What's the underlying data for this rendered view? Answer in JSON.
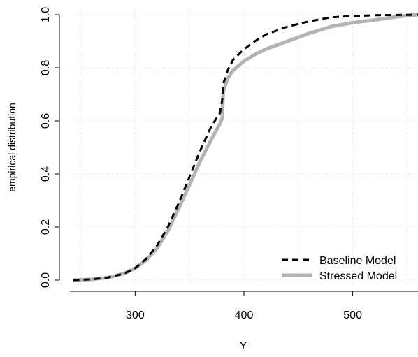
{
  "chart_data": {
    "type": "line",
    "title": "",
    "xlabel": "Y",
    "ylabel": "empirical distribution",
    "xlim": [
      240,
      560
    ],
    "ylim": [
      0,
      1
    ],
    "x_ticks": [
      300,
      400,
      500
    ],
    "x_tick_labels": [
      "300",
      "400",
      "500"
    ],
    "y_ticks": [
      0.0,
      0.2,
      0.4,
      0.6,
      0.8,
      1.0
    ],
    "y_tick_labels": [
      "0.0",
      "0.2",
      "0.4",
      "0.6",
      "0.8",
      "1.0"
    ],
    "grid": true,
    "legend": "bottom-right",
    "series": [
      {
        "name": "Baseline Model",
        "color": "#000000",
        "style": "dashed",
        "points": [
          [
            243,
            0.0
          ],
          [
            260,
            0.003
          ],
          [
            275,
            0.01
          ],
          [
            290,
            0.025
          ],
          [
            300,
            0.045
          ],
          [
            310,
            0.08
          ],
          [
            320,
            0.13
          ],
          [
            330,
            0.2
          ],
          [
            340,
            0.29
          ],
          [
            350,
            0.39
          ],
          [
            360,
            0.49
          ],
          [
            370,
            0.58
          ],
          [
            378,
            0.63
          ],
          [
            380,
            0.68
          ],
          [
            381,
            0.74
          ],
          [
            385,
            0.79
          ],
          [
            390,
            0.83
          ],
          [
            400,
            0.87
          ],
          [
            410,
            0.9
          ],
          [
            420,
            0.925
          ],
          [
            440,
            0.955
          ],
          [
            460,
            0.975
          ],
          [
            480,
            0.99
          ],
          [
            500,
            0.995
          ],
          [
            520,
            0.998
          ],
          [
            540,
            0.999
          ],
          [
            560,
            1.0
          ]
        ]
      },
      {
        "name": "Stressed Model",
        "color": "#b3b3b3",
        "style": "solid",
        "points": [
          [
            243,
            0.0
          ],
          [
            260,
            0.003
          ],
          [
            275,
            0.01
          ],
          [
            290,
            0.025
          ],
          [
            300,
            0.045
          ],
          [
            310,
            0.075
          ],
          [
            320,
            0.12
          ],
          [
            330,
            0.185
          ],
          [
            340,
            0.27
          ],
          [
            350,
            0.36
          ],
          [
            360,
            0.45
          ],
          [
            370,
            0.53
          ],
          [
            378,
            0.59
          ],
          [
            380,
            0.61
          ],
          [
            381,
            0.71
          ],
          [
            385,
            0.76
          ],
          [
            390,
            0.79
          ],
          [
            400,
            0.825
          ],
          [
            410,
            0.85
          ],
          [
            420,
            0.87
          ],
          [
            440,
            0.9
          ],
          [
            460,
            0.93
          ],
          [
            480,
            0.955
          ],
          [
            500,
            0.97
          ],
          [
            520,
            0.98
          ],
          [
            540,
            0.992
          ],
          [
            560,
            1.0
          ]
        ]
      }
    ]
  }
}
